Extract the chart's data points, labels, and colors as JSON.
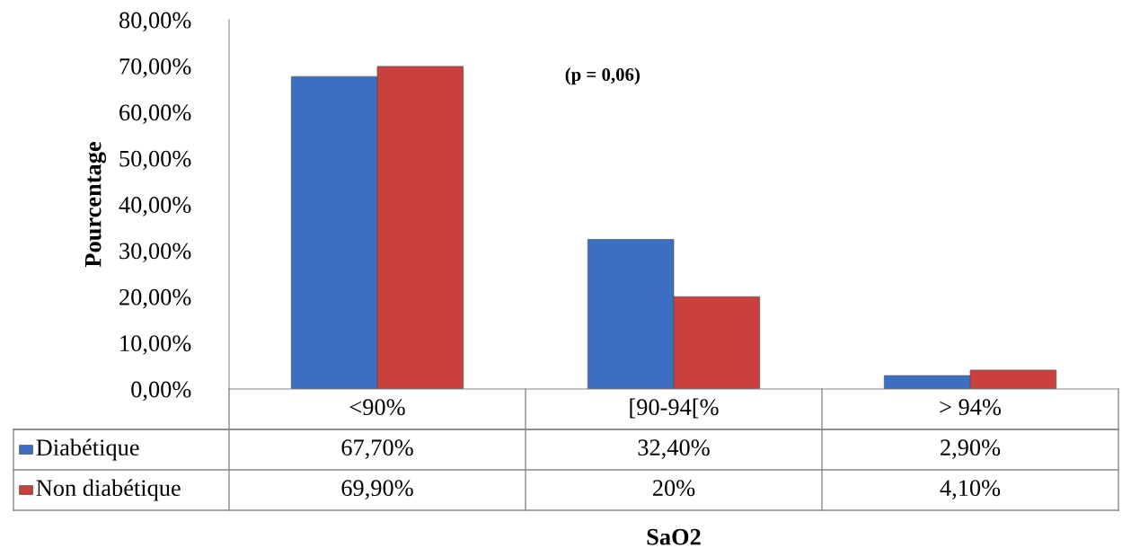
{
  "chart_data": {
    "type": "bar",
    "xlabel": "SaO2",
    "ylabel": "Pourcentage",
    "categories": [
      "<90%",
      "[90-94[%",
      "> 94%"
    ],
    "series": [
      {
        "name": "Diabétique",
        "color": "#3a6fc4",
        "values": [
          67.7,
          32.4,
          2.9
        ],
        "value_labels": [
          "67,70%",
          "32,40%",
          "2,90%"
        ]
      },
      {
        "name": "Non diabétique",
        "color": "#c9403d",
        "values": [
          69.9,
          20,
          4.1
        ],
        "value_labels": [
          "69,90%",
          "20%",
          "4,10%"
        ]
      }
    ],
    "ylim": [
      0,
      80
    ],
    "yticks": [
      {
        "value": 0,
        "label": "0,00%"
      },
      {
        "value": 10,
        "label": "10,00%"
      },
      {
        "value": 20,
        "label": "20,00%"
      },
      {
        "value": 30,
        "label": "30,00%"
      },
      {
        "value": 40,
        "label": "40,00%"
      },
      {
        "value": 50,
        "label": "50,00%"
      },
      {
        "value": 60,
        "label": "60,00%"
      },
      {
        "value": 70,
        "label": "70,00%"
      },
      {
        "value": 80,
        "label": "80,00%"
      }
    ],
    "annotations": [
      "(p = 0,06)"
    ],
    "grid": false,
    "legend": "bottom"
  }
}
